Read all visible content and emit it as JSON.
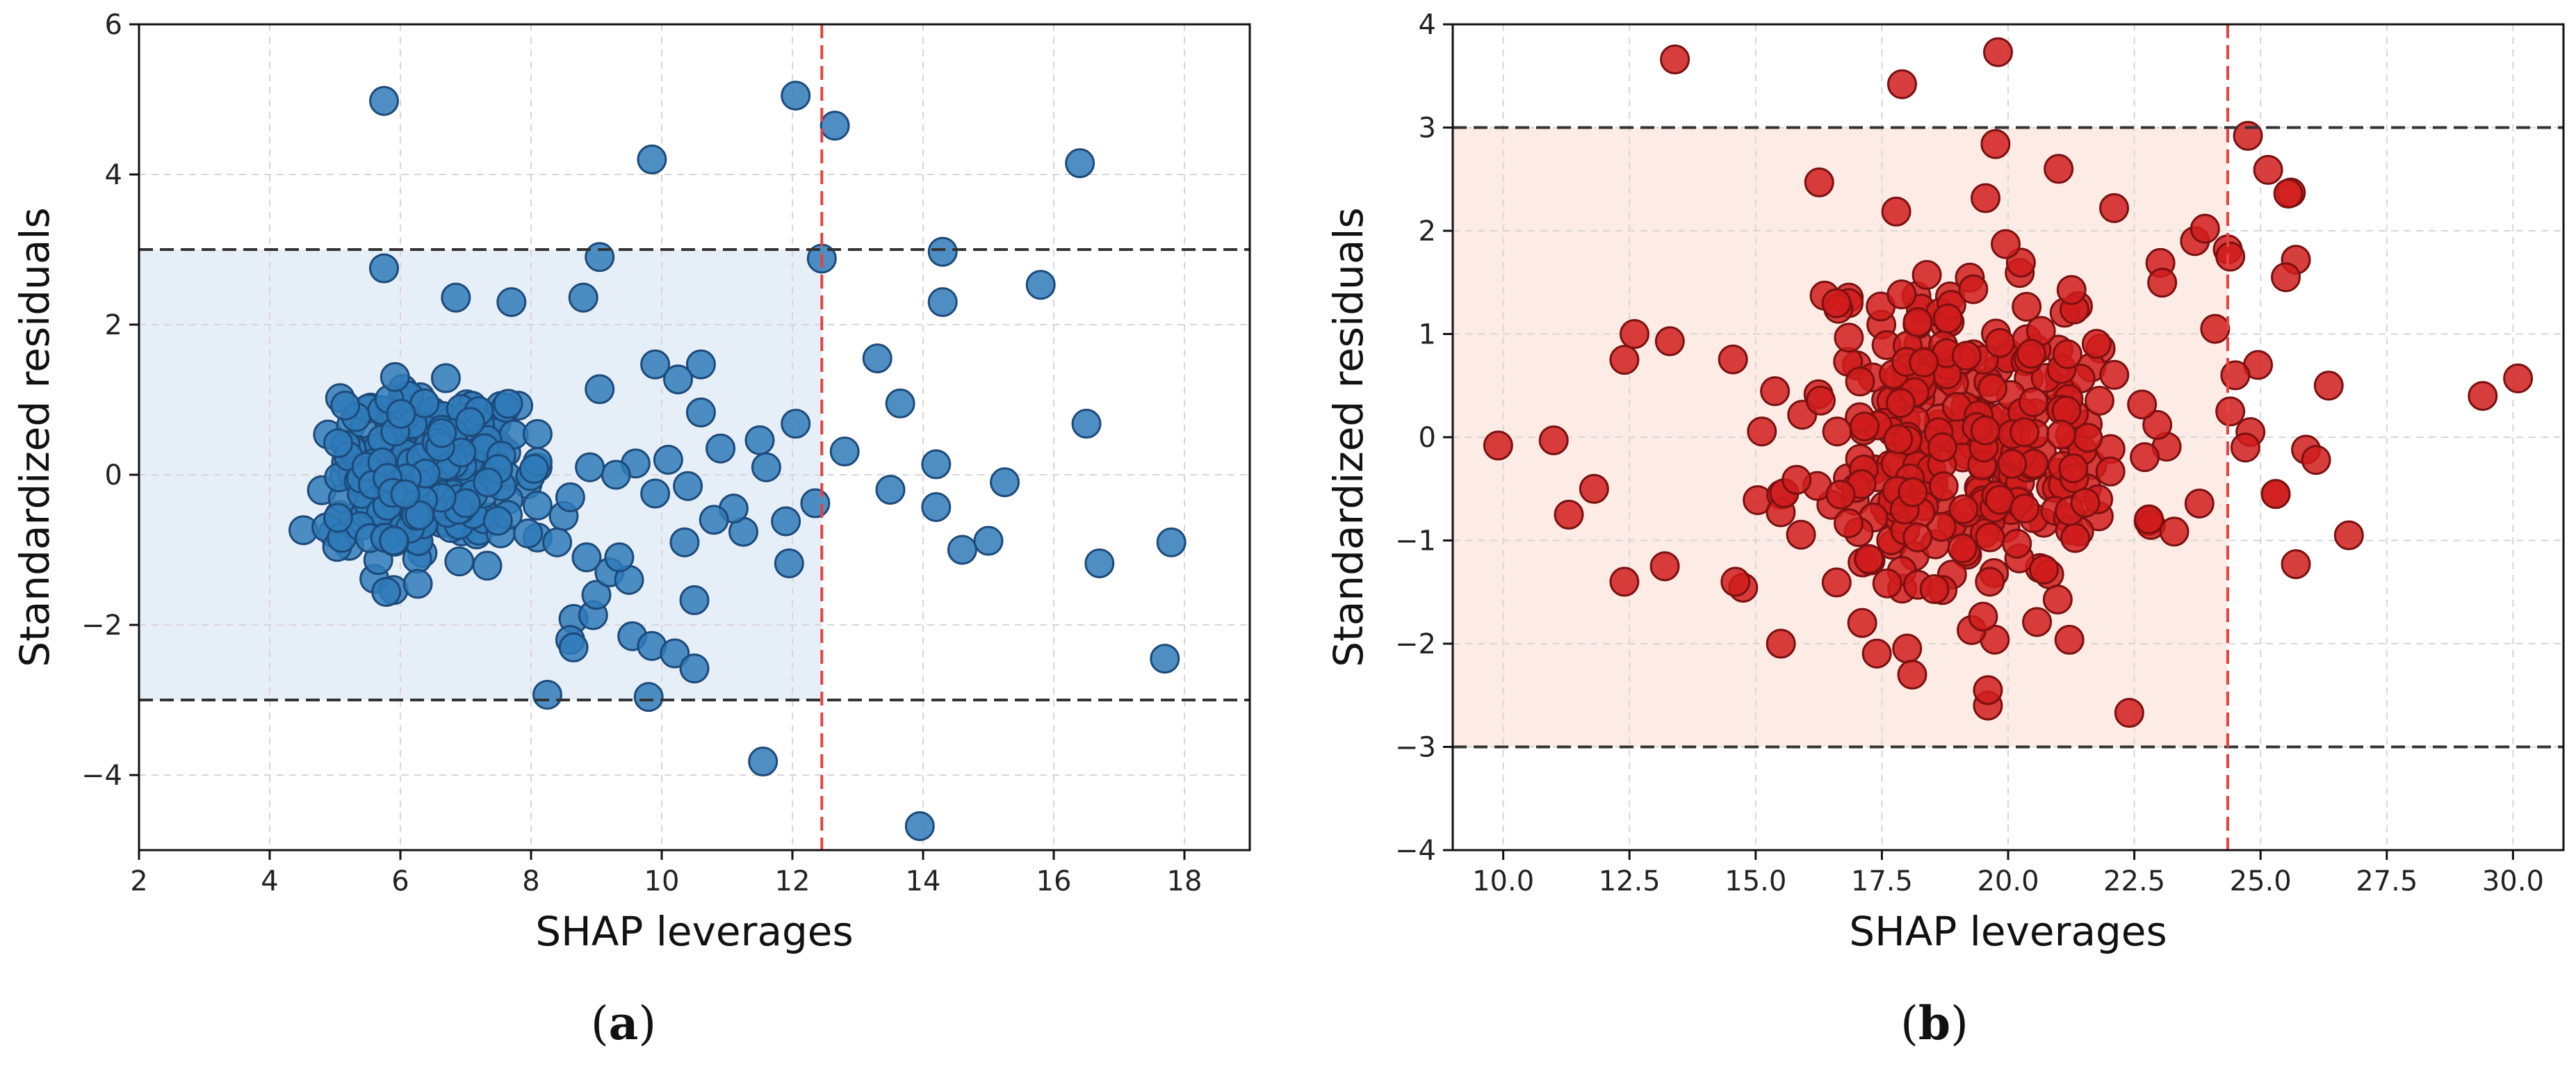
{
  "chart_data": [
    {
      "id": "a",
      "type": "scatter",
      "panel_label_open": "(",
      "panel_label_letter": "a",
      "panel_label_close": ")",
      "xlabel": "SHAP leverages",
      "ylabel": "Standardized residuals",
      "xlim": [
        2,
        19
      ],
      "ylim": [
        -5,
        6
      ],
      "xticks": [
        2,
        4,
        6,
        8,
        10,
        12,
        14,
        16,
        18
      ],
      "yticks": [
        -4,
        -2,
        0,
        2,
        4,
        6
      ],
      "xtick_labels": [
        "2",
        "4",
        "6",
        "8",
        "10",
        "12",
        "14",
        "16",
        "18"
      ],
      "ytick_labels": [
        "−4",
        "−2",
        "0",
        "2",
        "4",
        "6"
      ],
      "grid": true,
      "residual_limits": [
        -3,
        3
      ],
      "leverage_threshold": 12.45,
      "colors": {
        "point": "#2f7ab9",
        "edge": "#1c4a7a",
        "region": "#e6eef8",
        "threshold": "#e8413f",
        "limit": "#333333"
      },
      "outliers": [
        {
          "x": 5.75,
          "y": 4.98
        },
        {
          "x": 12.05,
          "y": 5.05
        },
        {
          "x": 12.65,
          "y": 4.65
        },
        {
          "x": 9.85,
          "y": 4.2
        },
        {
          "x": 16.4,
          "y": 4.15
        },
        {
          "x": 14.3,
          "y": 2.97
        },
        {
          "x": 9.05,
          "y": 2.9
        },
        {
          "x": 12.45,
          "y": 2.88
        },
        {
          "x": 5.75,
          "y": 2.75
        },
        {
          "x": 15.8,
          "y": 2.53
        },
        {
          "x": 6.85,
          "y": 2.36
        },
        {
          "x": 8.8,
          "y": 2.36
        },
        {
          "x": 7.7,
          "y": 2.3
        },
        {
          "x": 14.3,
          "y": 2.3
        },
        {
          "x": 13.3,
          "y": 1.55
        },
        {
          "x": 9.9,
          "y": 1.47
        },
        {
          "x": 10.6,
          "y": 1.47
        },
        {
          "x": 10.25,
          "y": 1.27
        },
        {
          "x": 9.05,
          "y": 1.14
        },
        {
          "x": 13.65,
          "y": 0.95
        },
        {
          "x": 10.6,
          "y": 0.83
        },
        {
          "x": 12.05,
          "y": 0.68
        },
        {
          "x": 16.5,
          "y": 0.68
        },
        {
          "x": 11.5,
          "y": 0.46
        },
        {
          "x": 12.8,
          "y": 0.31
        },
        {
          "x": 11.6,
          "y": 0.1
        },
        {
          "x": 14.2,
          "y": 0.14
        },
        {
          "x": 13.5,
          "y": -0.2
        },
        {
          "x": 15.25,
          "y": -0.1
        },
        {
          "x": 12.35,
          "y": -0.38
        },
        {
          "x": 14.2,
          "y": -0.43
        },
        {
          "x": 11.9,
          "y": -0.62
        },
        {
          "x": 11.25,
          "y": -0.76
        },
        {
          "x": 14.6,
          "y": -1.0
        },
        {
          "x": 15.0,
          "y": -0.88
        },
        {
          "x": 10.35,
          "y": -0.9
        },
        {
          "x": 17.8,
          "y": -0.9
        },
        {
          "x": 16.7,
          "y": -1.18
        },
        {
          "x": 11.95,
          "y": -1.18
        },
        {
          "x": 10.5,
          "y": -1.67
        },
        {
          "x": 8.65,
          "y": -1.92
        },
        {
          "x": 8.95,
          "y": -1.87
        },
        {
          "x": 8.6,
          "y": -2.2
        },
        {
          "x": 8.65,
          "y": -2.3
        },
        {
          "x": 9.55,
          "y": -2.15
        },
        {
          "x": 9.85,
          "y": -2.28
        },
        {
          "x": 10.2,
          "y": -2.38
        },
        {
          "x": 10.5,
          "y": -2.58
        },
        {
          "x": 17.7,
          "y": -2.45
        },
        {
          "x": 8.25,
          "y": -2.93
        },
        {
          "x": 9.8,
          "y": -2.96
        },
        {
          "x": 11.55,
          "y": -3.82
        },
        {
          "x": 13.95,
          "y": -4.68
        },
        {
          "x": 9.0,
          "y": -1.6
        },
        {
          "x": 9.2,
          "y": -1.3
        },
        {
          "x": 9.5,
          "y": -1.4
        },
        {
          "x": 8.5,
          "y": -0.55
        },
        {
          "x": 8.85,
          "y": -1.1
        },
        {
          "x": 9.35,
          "y": -1.1
        },
        {
          "x": 9.6,
          "y": 0.15
        },
        {
          "x": 10.1,
          "y": 0.2
        },
        {
          "x": 10.4,
          "y": -0.15
        },
        {
          "x": 10.9,
          "y": 0.35
        },
        {
          "x": 11.1,
          "y": -0.45
        },
        {
          "x": 10.8,
          "y": -0.6
        },
        {
          "x": 9.3,
          "y": 0.0
        },
        {
          "x": 8.9,
          "y": 0.1
        },
        {
          "x": 8.6,
          "y": -0.3
        },
        {
          "x": 8.4,
          "y": -0.9
        },
        {
          "x": 9.9,
          "y": -0.25
        }
      ],
      "cluster": {
        "n": 300,
        "seed": 7,
        "x_center": 6.3,
        "x_spread": 1.3,
        "x_min": 3.5,
        "x_max": 8.1,
        "y_sd": 0.55,
        "y_min": -1.7,
        "y_max": 1.35
      }
    },
    {
      "id": "b",
      "type": "scatter",
      "panel_label_open": "(",
      "panel_label_letter": "b",
      "panel_label_close": ")",
      "xlabel": "SHAP leverages",
      "ylabel": "Standardized residuals",
      "xlim": [
        9,
        31
      ],
      "ylim": [
        -4,
        4
      ],
      "xticks": [
        10,
        12.5,
        15,
        17.5,
        20,
        22.5,
        25,
        27.5,
        30
      ],
      "yticks": [
        -4,
        -3,
        -2,
        -1,
        0,
        1,
        2,
        3,
        4
      ],
      "xtick_labels": [
        "10.0",
        "12.5",
        "15.0",
        "17.5",
        "20.0",
        "22.5",
        "25.0",
        "27.5",
        "30.0"
      ],
      "ytick_labels": [
        "−4",
        "−3",
        "−2",
        "−1",
        "0",
        "1",
        "2",
        "3",
        "4"
      ],
      "grid": true,
      "residual_limits": [
        -3,
        3
      ],
      "leverage_threshold": 24.35,
      "colors": {
        "point": "#d01c1c",
        "edge": "#7a1010",
        "region": "#fdece5",
        "threshold": "#e8413f",
        "limit": "#333333"
      },
      "outliers": [
        {
          "x": 13.4,
          "y": 3.66
        },
        {
          "x": 17.9,
          "y": 3.42
        },
        {
          "x": 19.8,
          "y": 3.73
        },
        {
          "x": 19.75,
          "y": 2.84
        },
        {
          "x": 24.75,
          "y": 2.92
        },
        {
          "x": 25.15,
          "y": 2.59
        },
        {
          "x": 25.6,
          "y": 2.37
        },
        {
          "x": 25.55,
          "y": 2.36
        },
        {
          "x": 25.7,
          "y": 1.72
        },
        {
          "x": 25.5,
          "y": 1.55
        },
        {
          "x": 24.35,
          "y": 1.82
        },
        {
          "x": 24.4,
          "y": 1.75
        },
        {
          "x": 24.1,
          "y": 1.05
        },
        {
          "x": 24.4,
          "y": 0.25
        },
        {
          "x": 24.95,
          "y": 0.7
        },
        {
          "x": 25.9,
          "y": -0.12
        },
        {
          "x": 26.1,
          "y": -0.22
        },
        {
          "x": 26.35,
          "y": 0.5
        },
        {
          "x": 25.3,
          "y": -0.55
        },
        {
          "x": 25.3,
          "y": -0.55
        },
        {
          "x": 26.75,
          "y": -0.95
        },
        {
          "x": 25.7,
          "y": -1.23
        },
        {
          "x": 29.4,
          "y": 0.4
        },
        {
          "x": 30.1,
          "y": 0.57
        },
        {
          "x": 24.8,
          "y": 0.05
        },
        {
          "x": 24.7,
          "y": -0.1
        },
        {
          "x": 24.5,
          "y": 0.6
        },
        {
          "x": 9.9,
          "y": -0.08
        },
        {
          "x": 11.0,
          "y": -0.03
        },
        {
          "x": 11.3,
          "y": -0.75
        },
        {
          "x": 11.8,
          "y": -0.5
        },
        {
          "x": 12.4,
          "y": -1.4
        },
        {
          "x": 12.4,
          "y": 0.75
        },
        {
          "x": 12.6,
          "y": 1.0
        },
        {
          "x": 13.2,
          "y": -1.25
        },
        {
          "x": 13.3,
          "y": 0.93
        },
        {
          "x": 14.6,
          "y": -1.4
        },
        {
          "x": 15.5,
          "y": -2.0
        },
        {
          "x": 22.4,
          "y": -2.67
        },
        {
          "x": 19.6,
          "y": -2.6
        },
        {
          "x": 19.6,
          "y": -2.45
        },
        {
          "x": 22.1,
          "y": 2.22
        },
        {
          "x": 21.0,
          "y": 2.6
        },
        {
          "x": 23.7,
          "y": 1.9
        },
        {
          "x": 23.9,
          "y": 2.02
        }
      ],
      "cluster": {
        "n": 330,
        "seed": 11,
        "x_center": 19.2,
        "x_spread": 3.0,
        "x_min": 12.4,
        "x_max": 24.2,
        "y_sd": 0.85,
        "y_min": -2.3,
        "y_max": 2.5
      }
    }
  ]
}
